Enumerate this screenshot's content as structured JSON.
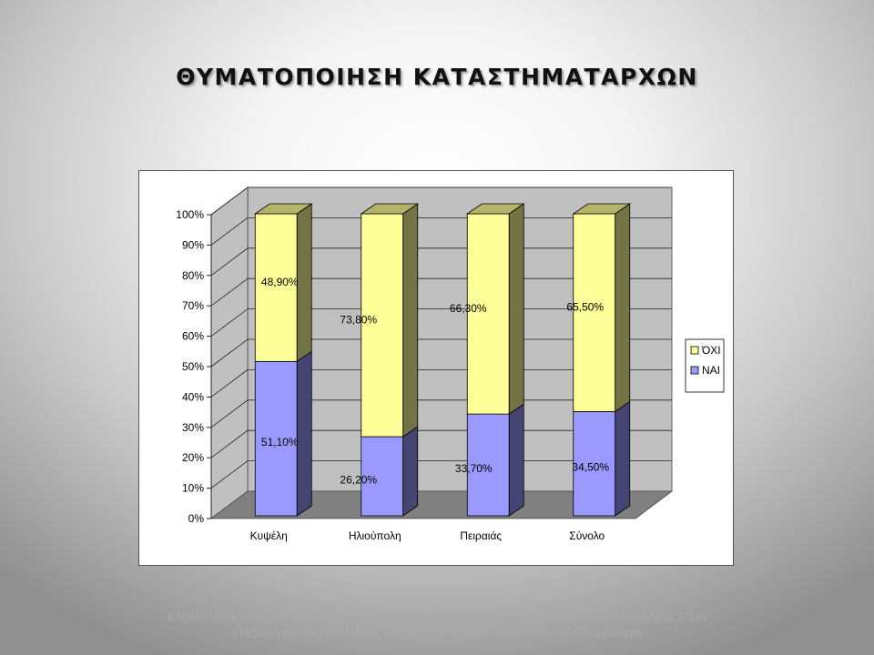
{
  "slide": {
    "title": "ΘΥΜΑΤΟΠΟΙΗΣΗ ΚΑΤΑΣΤΗΜΑΤΑΡΧΩΝ",
    "footer_line1": "ΚΑΘΗΓΗΤΡΙΑ ΧΡΙΣΤΙΝΑ ΖΑΡΑΦΩΝΙΤΟΥ ΗΜΕΡΙΔΑ \"ΠΟΛΗ ΕΓΚΛΗΜΑΤΙΚΟΤΗΤΑ ΚΑΙ ΑΝΑΣΦΑΛΕΙΑ ΣΤΗΝ",
    "footer_line2": "ΕΠΟΧΗ ΤΗΣ ΟΙΚΟΝΟΜΙΚΗΣ ΚΡΙΣΗΣ\" 30-1-2013, ΤΕΧΝΟΠΟΛΙΣ-Δ.ΑΘΗΝΑΙΩΝ"
  },
  "chart_data": {
    "type": "bar",
    "stacked": true,
    "percent_stacked": true,
    "three_d": true,
    "categories": [
      "Κυψέλη",
      "Ηλιούπολη",
      "Πειραιάς",
      "Σύνολο"
    ],
    "series": [
      {
        "name": "ΝΑΙ",
        "values": [
          51.1,
          26.2,
          33.7,
          34.5
        ],
        "labels": [
          "51,10%",
          "26,20%",
          "33,70%",
          "34,50%"
        ],
        "color": "#9999ff"
      },
      {
        "name": "ΌΧΙ",
        "values": [
          48.9,
          73.8,
          66.3,
          65.5
        ],
        "labels": [
          "48,90%",
          "73,80%",
          "66,30%",
          "65,50%"
        ],
        "color": "#ffff99"
      }
    ],
    "legend_order": [
      "ΌΧΙ",
      "ΝΑΙ"
    ],
    "legend_position": "right",
    "y_ticks": [
      "0%",
      "10%",
      "20%",
      "30%",
      "40%",
      "50%",
      "60%",
      "70%",
      "80%",
      "90%",
      "100%"
    ],
    "ylim": [
      0,
      100
    ],
    "grid": true,
    "wall_color": "#c0c0c0",
    "floor_color": "#808080"
  }
}
